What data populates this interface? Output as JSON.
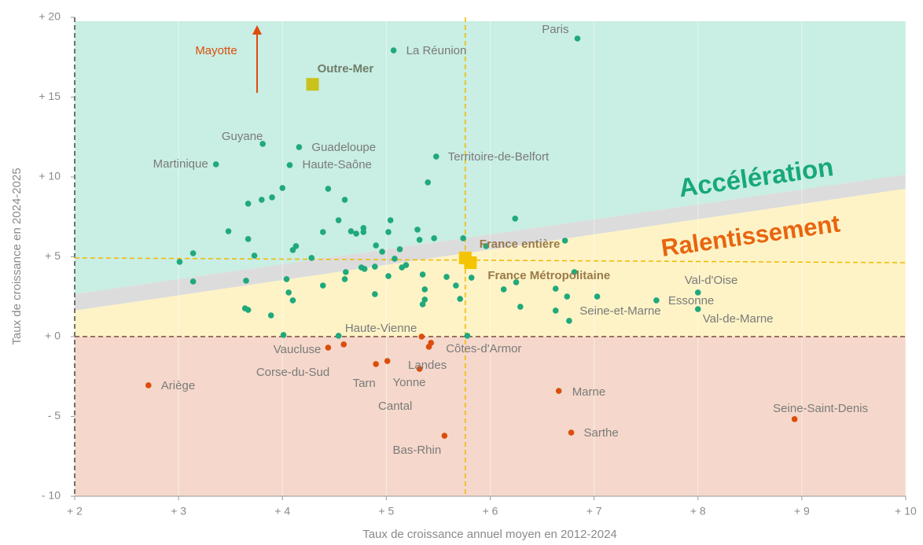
{
  "chart_data": {
    "type": "scatter",
    "xlabel": "Taux de croissance annuel moyen en 2012-2024",
    "ylabel": "Taux de croissance en 2024-2025",
    "xlim": [
      2,
      10
    ],
    "ylim": [
      -10,
      20
    ],
    "xticks": [
      {
        "value": 2,
        "label": "+ 2"
      },
      {
        "value": 3,
        "label": "+ 3"
      },
      {
        "value": 4,
        "label": "+ 4"
      },
      {
        "value": 5,
        "label": "+ 5"
      },
      {
        "value": 6,
        "label": "+ 6"
      },
      {
        "value": 7,
        "label": "+ 7"
      },
      {
        "value": 8,
        "label": "+ 8"
      },
      {
        "value": 9,
        "label": "+ 9"
      },
      {
        "value": 10,
        "label": "+ 10"
      }
    ],
    "yticks": [
      {
        "value": 20,
        "label": "+ 20"
      },
      {
        "value": 15,
        "label": "+ 15"
      },
      {
        "value": 10,
        "label": "+ 10"
      },
      {
        "value": 5,
        "label": "+ 5"
      },
      {
        "value": 0,
        "label": "+ 0"
      },
      {
        "value": -5,
        "label": "- 5"
      },
      {
        "value": -10,
        "label": "- 10"
      }
    ],
    "grid": true,
    "annotations": [
      "Accélération",
      "Ralentissement",
      "Mayotte"
    ],
    "series": [
      {
        "color": "#1fa97c",
        "marker": "circle",
        "labels": [
          "Paris",
          "La Réunion",
          "Guyane",
          "Guadeloupe",
          "Martinique",
          "Haute-Saône",
          "Territoire-de-Belfort",
          "Val-d'Oise",
          "Essonne",
          "Val-de-Marne",
          "Seine-et-Marne"
        ],
        "x": [
          6.84,
          5.07,
          3.81,
          4.16,
          3.36,
          4.07,
          5.48,
          8.0,
          7.6,
          8.0,
          6.74
        ],
        "y": [
          18.67,
          17.93,
          12.07,
          11.87,
          10.79,
          10.74,
          11.28,
          2.76,
          2.27,
          1.72,
          2.51
        ]
      },
      {
        "color": "#1fa97c",
        "marker": "circle",
        "x": [
          3.01,
          3.14,
          3.14,
          3.48,
          3.67,
          3.67,
          3.73,
          3.8,
          3.9,
          4.0,
          3.65,
          3.64,
          3.67,
          3.89,
          4.04,
          4.06,
          4.1,
          4.1,
          4.13,
          4.28,
          4.39,
          4.44,
          4.39,
          4.6,
          4.54,
          4.66,
          4.71,
          4.78,
          4.78,
          4.6,
          4.61,
          4.76,
          4.79,
          4.9,
          4.89,
          4.89,
          4.96,
          5.02,
          5.04,
          5.02,
          5.08,
          5.13,
          5.15,
          5.19,
          5.3,
          5.32,
          5.35,
          5.37,
          5.37,
          5.35,
          5.4,
          5.46,
          5.58,
          5.67,
          5.71,
          5.74,
          5.82,
          5.96,
          6.13,
          6.24,
          6.25,
          6.29,
          6.63,
          6.63,
          6.72,
          6.76,
          6.81,
          7.03,
          4.01,
          4.54,
          5.78
        ],
        "y": [
          4.68,
          5.22,
          3.45,
          6.6,
          8.33,
          6.11,
          5.07,
          8.57,
          8.72,
          9.31,
          3.5,
          1.77,
          1.67,
          1.33,
          3.6,
          2.76,
          2.27,
          5.42,
          5.67,
          4.93,
          6.55,
          9.26,
          3.2,
          8.57,
          7.29,
          6.6,
          6.45,
          6.8,
          6.55,
          3.6,
          4.04,
          4.33,
          4.24,
          5.71,
          2.66,
          4.38,
          5.32,
          3.79,
          7.29,
          6.55,
          4.88,
          5.47,
          4.33,
          4.48,
          6.7,
          6.06,
          3.89,
          2.96,
          2.32,
          2.02,
          9.66,
          6.16,
          3.74,
          3.2,
          2.36,
          6.16,
          3.69,
          5.67,
          2.96,
          7.39,
          3.4,
          1.87,
          3.0,
          1.63,
          6.01,
          0.99,
          4.04,
          2.51,
          0.1,
          0.05,
          0.05
        ]
      },
      {
        "color": "#dc4d0c",
        "marker": "circle",
        "labels": [
          "Haute-Vienne",
          "Côtes-d'Armor",
          "Yonne",
          "Vaucluse",
          "Corse-du-Sud",
          "Tarn",
          "Cantal",
          "Landes",
          "Ariège",
          "Marne",
          "Sarthe",
          "Seine-Saint-Denis",
          "Bas-Rhin"
        ],
        "x": [
          5.34,
          5.43,
          5.41,
          4.44,
          4.59,
          4.9,
          5.01,
          5.32,
          2.71,
          6.66,
          6.78,
          8.93,
          5.56
        ],
        "y": [
          0.0,
          -0.39,
          -0.64,
          -0.69,
          -0.49,
          -1.72,
          -1.53,
          -2.02,
          -3.05,
          -3.4,
          -6.01,
          -5.17,
          -6.21
        ]
      },
      {
        "color": "#c8c21a",
        "marker": "square",
        "labels": [
          "Outre-Mer"
        ],
        "x": [
          4.29
        ],
        "y": [
          15.8
        ]
      },
      {
        "color": "#f5c400",
        "marker": "square",
        "labels": [
          "France entière",
          "France Métropolitaine"
        ],
        "x": [
          5.76,
          5.81
        ],
        "y": [
          4.93,
          4.63
        ]
      }
    ]
  }
}
